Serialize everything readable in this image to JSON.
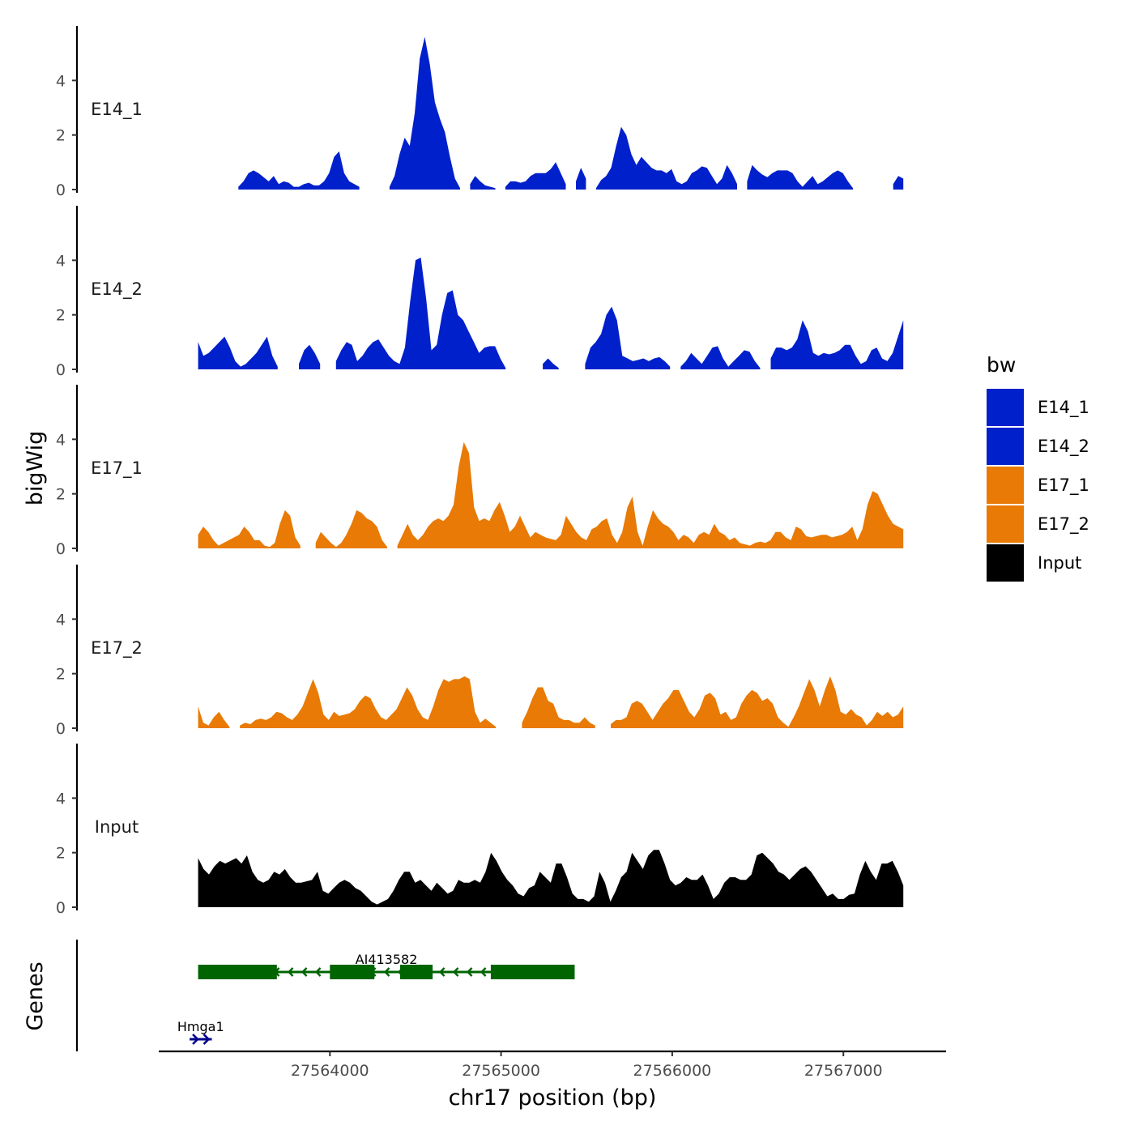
{
  "chart_data": {
    "type": "area",
    "title": "",
    "xlabel": "chr17 position (bp)",
    "ylabel": "bigWig",
    "genes_label": "Genes",
    "x_ticks": [
      27564000,
      27565000,
      27566000,
      27567000
    ],
    "x_tick_labels": [
      "27564000",
      "27565000",
      "27566000",
      "27567000"
    ],
    "xlim": [
      27563000,
      27567600
    ],
    "data_x_range": [
      27563230,
      27567350
    ],
    "ylim": [
      0,
      6
    ],
    "y_ticks": [
      0,
      2,
      4
    ],
    "legend": {
      "title": "bw",
      "position": "right",
      "entries": [
        {
          "label": "E14_1",
          "color": "#0020CC"
        },
        {
          "label": "E14_2",
          "color": "#0020CC"
        },
        {
          "label": "E17_1",
          "color": "#E87A05"
        },
        {
          "label": "E17_2",
          "color": "#E87A05"
        },
        {
          "label": "Input",
          "color": "#000000"
        }
      ]
    },
    "series": [
      {
        "name": "E14_1",
        "color": "#0020CC",
        "values": [
          null,
          null,
          null,
          null,
          null,
          null,
          null,
          null,
          0.1,
          0.3,
          0.6,
          0.7,
          0.6,
          0.45,
          0.3,
          0.5,
          0.2,
          0.3,
          0.25,
          0.1,
          0.1,
          0.2,
          0.25,
          0.15,
          0.15,
          0.3,
          0.6,
          1.2,
          1.4,
          0.6,
          0.3,
          0.2,
          0.1,
          null,
          null,
          null,
          null,
          null,
          0.1,
          0.5,
          1.3,
          1.9,
          1.6,
          2.8,
          4.8,
          5.6,
          4.6,
          3.2,
          2.6,
          2.1,
          1.2,
          0.4,
          0.05,
          null,
          0.2,
          0.5,
          0.3,
          0.15,
          0.1,
          0.05,
          null,
          0.1,
          0.3,
          0.3,
          0.25,
          0.3,
          0.5,
          0.6,
          0.6,
          0.6,
          0.75,
          1,
          0.6,
          0.2,
          null,
          0.3,
          0.8,
          0.4,
          null,
          0.05,
          0.35,
          0.5,
          0.8,
          1.6,
          2.3,
          2.0,
          1.3,
          0.9,
          1.2,
          1.0,
          0.8,
          0.7,
          0.7,
          0.6,
          0.75,
          0.3,
          0.2,
          0.3,
          0.6,
          0.7,
          0.85,
          0.8,
          0.5,
          0.2,
          0.4,
          0.9,
          0.6,
          0.2,
          null,
          0.3,
          0.9,
          0.7,
          0.55,
          0.45,
          0.6,
          0.7,
          0.7,
          0.7,
          0.6,
          0.3,
          0.1,
          0.3,
          0.5,
          0.2,
          0.3,
          0.45,
          0.6,
          0.7,
          0.6,
          0.3,
          0.05,
          null,
          null,
          null,
          null,
          null,
          null,
          null,
          0.2,
          0.5,
          0.4
        ]
      },
      {
        "name": "E14_2",
        "color": "#0020CC",
        "values": [
          1.0,
          0.5,
          0.6,
          0.8,
          1.0,
          1.2,
          0.8,
          0.3,
          0.1,
          0.2,
          0.4,
          0.6,
          0.9,
          1.2,
          0.5,
          0.1,
          null,
          null,
          null,
          0.2,
          0.7,
          0.9,
          0.6,
          0.2,
          null,
          null,
          0.3,
          0.7,
          1.0,
          0.9,
          0.3,
          0.5,
          0.8,
          1.0,
          1.1,
          0.8,
          0.5,
          0.3,
          0.2,
          0.8,
          2.5,
          4.0,
          4.1,
          2.6,
          0.7,
          0.9,
          2.0,
          2.8,
          2.9,
          2.0,
          1.8,
          1.4,
          1.0,
          0.6,
          0.8,
          0.85,
          0.85,
          0.4,
          0.05,
          null,
          null,
          null,
          null,
          null,
          null,
          0.2,
          0.4,
          0.2,
          0.05,
          null,
          null,
          null,
          null,
          0.2,
          0.8,
          1.0,
          1.3,
          2.0,
          2.3,
          1.8,
          0.5,
          0.4,
          0.3,
          0.35,
          0.4,
          0.3,
          0.4,
          0.45,
          0.3,
          0.1,
          null,
          0.1,
          0.3,
          0.6,
          0.4,
          0.2,
          0.5,
          0.8,
          0.85,
          0.4,
          0.1,
          0.3,
          0.5,
          0.7,
          0.65,
          0.3,
          0.05,
          null,
          0.4,
          0.8,
          0.8,
          0.7,
          0.8,
          1.1,
          1.8,
          1.4,
          0.6,
          0.5,
          0.6,
          0.55,
          0.6,
          0.7,
          0.9,
          0.9,
          0.5,
          0.2,
          0.3,
          0.7,
          0.8,
          0.4,
          0.3,
          0.6,
          1.2,
          1.8
        ]
      },
      {
        "name": "E17_1",
        "color": "#E87A05",
        "values": [
          0.5,
          0.8,
          0.6,
          0.3,
          0.1,
          0.2,
          0.3,
          0.4,
          0.5,
          0.8,
          0.6,
          0.3,
          0.3,
          0.1,
          0.05,
          0.2,
          0.9,
          1.4,
          1.2,
          0.4,
          0.1,
          null,
          null,
          0.2,
          0.6,
          0.4,
          0.2,
          0.05,
          0.2,
          0.5,
          0.9,
          1.4,
          1.3,
          1.1,
          1.0,
          0.8,
          0.3,
          0.05,
          null,
          0.1,
          0.5,
          0.9,
          0.5,
          0.3,
          0.5,
          0.8,
          1.0,
          1.1,
          1.0,
          1.2,
          1.6,
          3.0,
          3.9,
          3.5,
          1.5,
          1.0,
          1.1,
          1.0,
          1.4,
          1.7,
          1.2,
          0.6,
          0.8,
          1.2,
          0.8,
          0.4,
          0.6,
          0.5,
          0.4,
          0.35,
          0.3,
          0.5,
          1.2,
          0.9,
          0.6,
          0.4,
          0.3,
          0.7,
          0.8,
          1.0,
          1.1,
          0.5,
          0.2,
          0.6,
          1.5,
          1.9,
          0.6,
          0.1,
          0.8,
          1.4,
          1.1,
          0.9,
          0.8,
          0.6,
          0.3,
          0.5,
          0.4,
          0.2,
          0.5,
          0.6,
          0.5,
          0.9,
          0.6,
          0.5,
          0.3,
          0.4,
          0.2,
          0.15,
          0.1,
          0.2,
          0.25,
          0.2,
          0.3,
          0.6,
          0.6,
          0.4,
          0.3,
          0.8,
          0.7,
          0.45,
          0.4,
          0.45,
          0.5,
          0.5,
          0.4,
          0.45,
          0.5,
          0.6,
          0.8,
          0.3,
          0.7,
          1.6,
          2.1,
          2.0,
          1.6,
          1.2,
          0.9,
          0.8,
          0.7
        ]
      },
      {
        "name": "E17_2",
        "color": "#E87A05",
        "values": [
          0.8,
          0.2,
          0.1,
          0.4,
          0.6,
          0.3,
          0.05,
          null,
          0.1,
          0.2,
          0.15,
          0.3,
          0.35,
          0.3,
          0.4,
          0.6,
          0.55,
          0.4,
          0.3,
          0.5,
          0.8,
          1.3,
          1.8,
          1.3,
          0.5,
          0.3,
          0.6,
          0.45,
          0.5,
          0.55,
          0.7,
          1.0,
          1.2,
          1.1,
          0.7,
          0.4,
          0.3,
          0.5,
          0.7,
          1.1,
          1.5,
          1.2,
          0.7,
          0.4,
          0.3,
          0.8,
          1.4,
          1.8,
          1.7,
          1.8,
          1.8,
          1.9,
          1.8,
          0.6,
          0.2,
          0.35,
          0.2,
          0.05,
          null,
          null,
          null,
          null,
          0.2,
          0.6,
          1.1,
          1.5,
          1.5,
          1.0,
          0.9,
          0.4,
          0.3,
          0.3,
          0.2,
          0.2,
          0.4,
          0.2,
          0.1,
          null,
          null,
          0.15,
          0.3,
          0.3,
          0.4,
          0.9,
          1.0,
          0.9,
          0.6,
          0.3,
          0.6,
          0.9,
          1.1,
          1.4,
          1.4,
          1.0,
          0.6,
          0.4,
          0.7,
          1.2,
          1.3,
          1.1,
          0.5,
          0.6,
          0.3,
          0.4,
          0.9,
          1.2,
          1.4,
          1.3,
          1.0,
          1.1,
          0.9,
          0.4,
          0.2,
          0.05,
          0.4,
          0.8,
          1.3,
          1.8,
          1.4,
          0.8,
          1.4,
          1.9,
          1.4,
          0.6,
          0.5,
          0.7,
          0.5,
          0.4,
          0.1,
          0.3,
          0.6,
          0.45,
          0.6,
          0.4,
          0.5,
          0.8
        ]
      },
      {
        "name": "Input",
        "color": "#000000",
        "values": [
          1.8,
          1.4,
          1.2,
          1.5,
          1.7,
          1.6,
          1.7,
          1.8,
          1.6,
          1.9,
          1.3,
          1.0,
          0.9,
          1.0,
          1.3,
          1.2,
          1.4,
          1.1,
          0.9,
          0.9,
          0.95,
          1.0,
          1.3,
          0.6,
          0.5,
          0.7,
          0.9,
          1.0,
          0.9,
          0.7,
          0.6,
          0.4,
          0.2,
          0.1,
          0.2,
          0.3,
          0.6,
          1.0,
          1.3,
          1.3,
          0.9,
          1.0,
          0.8,
          0.6,
          0.9,
          0.7,
          0.5,
          0.6,
          1.0,
          0.9,
          0.9,
          1.0,
          0.9,
          1.3,
          2.0,
          1.7,
          1.3,
          1.0,
          0.8,
          0.5,
          0.4,
          0.7,
          0.8,
          1.3,
          1.1,
          0.9,
          1.6,
          1.6,
          1.1,
          0.5,
          0.3,
          0.3,
          0.2,
          0.4,
          1.3,
          0.9,
          0.2,
          0.6,
          1.1,
          1.3,
          2.0,
          1.7,
          1.4,
          1.9,
          2.1,
          2.1,
          1.6,
          1.0,
          0.8,
          0.9,
          1.1,
          1.0,
          1.0,
          1.2,
          0.8,
          0.3,
          0.5,
          0.9,
          1.1,
          1.1,
          1.0,
          1.0,
          1.2,
          1.9,
          2.0,
          1.8,
          1.6,
          1.3,
          1.2,
          1.0,
          1.2,
          1.4,
          1.5,
          1.3,
          1.0,
          0.7,
          0.4,
          0.5,
          0.3,
          0.3,
          0.45,
          0.5,
          1.2,
          1.7,
          1.3,
          1.0,
          1.6,
          1.6,
          1.7,
          1.3,
          0.8
        ]
      }
    ],
    "genes": [
      {
        "name": "AI413582",
        "strand": "-",
        "start": 27563230,
        "end": 27565430,
        "color": "#006400",
        "exons": [
          [
            27563230,
            27563690
          ],
          [
            27564000,
            27564260
          ],
          [
            27564410,
            27564600
          ],
          [
            27564940,
            27565430
          ]
        ]
      },
      {
        "name": "Hmga1",
        "strand": "+",
        "start": 27563180,
        "end": 27563310,
        "color": "#00008B",
        "exons": []
      }
    ]
  }
}
